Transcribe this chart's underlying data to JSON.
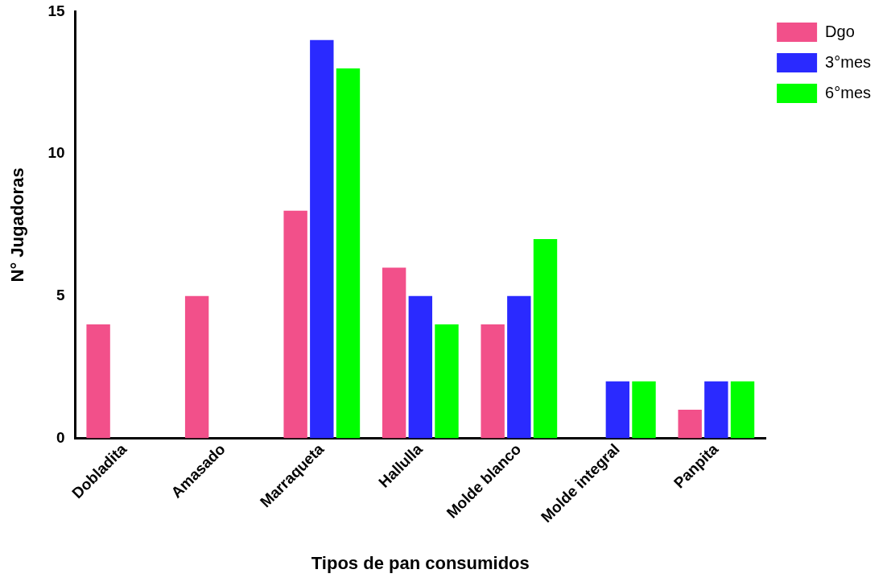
{
  "chart_data": {
    "type": "bar",
    "xlabel": "Tipos de pan consumidos",
    "ylabel": "N° Jugadoras",
    "categories": [
      "Dobladita",
      "Amasado",
      "Marraqueta",
      "Hallulla",
      "Molde blanco",
      "Molde integral",
      "Panpita"
    ],
    "series": [
      {
        "name": "Dgo",
        "color": "#f2508a",
        "values": [
          4,
          5,
          8,
          6,
          4,
          0,
          1
        ]
      },
      {
        "name": "3°mes",
        "color": "#2a2aff",
        "values": [
          0,
          0,
          14,
          5,
          5,
          2,
          2
        ]
      },
      {
        "name": "6°mes",
        "color": "#00ff00",
        "values": [
          0,
          0,
          13,
          4,
          7,
          2,
          2
        ]
      }
    ],
    "ylim": [
      0,
      15
    ],
    "yticks": [
      0,
      5,
      10,
      15
    ],
    "grid": false,
    "legend": "top right"
  }
}
